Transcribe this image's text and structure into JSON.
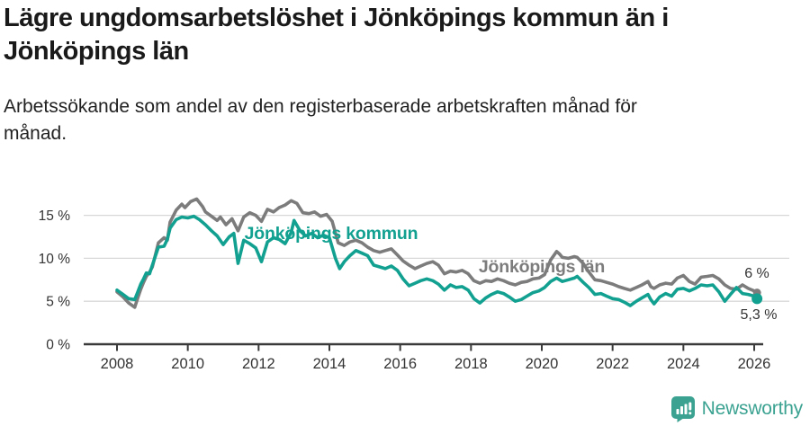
{
  "header": {
    "title_line1": "Lägre ungdomsarbetslöshet i Jönköpings kommun än i",
    "title_line2": "Jönköpings län",
    "subtitle_line1": "Arbetssökande som andel av den registerbaserade arbetskraften månad för",
    "subtitle_line2": "månad."
  },
  "footer": {
    "brand": "Newsworthy",
    "brand_color": "#3BA291",
    "logo_icon": "bar-chart-speech-bubble-icon"
  },
  "chart_data": {
    "type": "line",
    "title": "Lägre ungdomsarbetslöshet i Jönköpings kommun än i Jönköpings län",
    "subtitle": "Arbetssökande som andel av den registerbaserade arbetskraften månad för månad.",
    "grid": "horizontal",
    "legend": "inline-labels",
    "colors": {
      "kommun": "#12A191",
      "lan": "#7C7C7C",
      "gridline": "#D8D8D8",
      "axis": "#3A3A3A",
      "tick_text": "#333333"
    },
    "x_axis": {
      "ticks": [
        2008,
        2010,
        2012,
        2014,
        2016,
        2018,
        2020,
        2022,
        2024,
        2026
      ],
      "range": [
        2007.6,
        2027.0
      ]
    },
    "y_axis": {
      "tick_values": [
        0,
        5,
        10,
        15
      ],
      "tick_labels": [
        "0 %",
        "5 %",
        "10 %",
        "15 %"
      ],
      "unit": "%",
      "range": [
        0,
        17.5
      ]
    },
    "series": [
      {
        "name": "Jönköpings län",
        "color": "#7C7C7C",
        "end_label": "6 %",
        "end_value": 6.0,
        "points": [
          [
            2008.0,
            6.1
          ],
          [
            2008.17,
            5.5
          ],
          [
            2008.33,
            4.8
          ],
          [
            2008.5,
            4.3
          ],
          [
            2008.58,
            5.3
          ],
          [
            2008.67,
            6.4
          ],
          [
            2008.75,
            7.2
          ],
          [
            2008.83,
            7.9
          ],
          [
            2008.92,
            8.4
          ],
          [
            2009.0,
            9.0
          ],
          [
            2009.17,
            11.8
          ],
          [
            2009.33,
            12.4
          ],
          [
            2009.42,
            12.1
          ],
          [
            2009.5,
            14.2
          ],
          [
            2009.67,
            15.6
          ],
          [
            2009.83,
            16.3
          ],
          [
            2009.92,
            15.9
          ],
          [
            2010.08,
            16.6
          ],
          [
            2010.25,
            16.9
          ],
          [
            2010.42,
            16.0
          ],
          [
            2010.5,
            15.4
          ],
          [
            2010.67,
            14.9
          ],
          [
            2010.83,
            14.4
          ],
          [
            2010.92,
            14.8
          ],
          [
            2011.08,
            13.9
          ],
          [
            2011.25,
            14.6
          ],
          [
            2011.42,
            13.2
          ],
          [
            2011.58,
            14.8
          ],
          [
            2011.75,
            15.3
          ],
          [
            2011.92,
            15.0
          ],
          [
            2012.08,
            14.3
          ],
          [
            2012.25,
            15.7
          ],
          [
            2012.42,
            15.4
          ],
          [
            2012.58,
            15.9
          ],
          [
            2012.75,
            16.2
          ],
          [
            2012.92,
            16.7
          ],
          [
            2013.08,
            16.4
          ],
          [
            2013.25,
            15.3
          ],
          [
            2013.42,
            15.2
          ],
          [
            2013.58,
            15.4
          ],
          [
            2013.75,
            14.9
          ],
          [
            2013.92,
            15.1
          ],
          [
            2014.08,
            14.3
          ],
          [
            2014.25,
            11.8
          ],
          [
            2014.42,
            11.5
          ],
          [
            2014.58,
            11.9
          ],
          [
            2014.75,
            12.1
          ],
          [
            2014.92,
            11.8
          ],
          [
            2015.08,
            11.3
          ],
          [
            2015.25,
            10.9
          ],
          [
            2015.42,
            10.7
          ],
          [
            2015.58,
            10.9
          ],
          [
            2015.75,
            11.1
          ],
          [
            2015.92,
            10.4
          ],
          [
            2016.08,
            9.7
          ],
          [
            2016.25,
            9.2
          ],
          [
            2016.42,
            8.8
          ],
          [
            2016.58,
            9.1
          ],
          [
            2016.75,
            9.4
          ],
          [
            2016.92,
            9.6
          ],
          [
            2017.08,
            9.2
          ],
          [
            2017.25,
            8.2
          ],
          [
            2017.42,
            8.5
          ],
          [
            2017.58,
            8.4
          ],
          [
            2017.75,
            8.6
          ],
          [
            2017.92,
            8.2
          ],
          [
            2018.08,
            7.4
          ],
          [
            2018.25,
            7.1
          ],
          [
            2018.42,
            7.4
          ],
          [
            2018.58,
            7.3
          ],
          [
            2018.75,
            7.6
          ],
          [
            2018.92,
            7.4
          ],
          [
            2019.08,
            7.1
          ],
          [
            2019.25,
            6.9
          ],
          [
            2019.42,
            7.2
          ],
          [
            2019.58,
            7.3
          ],
          [
            2019.75,
            7.6
          ],
          [
            2019.92,
            7.7
          ],
          [
            2020.08,
            8.1
          ],
          [
            2020.25,
            9.8
          ],
          [
            2020.42,
            10.8
          ],
          [
            2020.5,
            10.5
          ],
          [
            2020.58,
            10.1
          ],
          [
            2020.75,
            10.0
          ],
          [
            2020.92,
            10.2
          ],
          [
            2021.0,
            10.1
          ],
          [
            2021.17,
            9.4
          ],
          [
            2021.33,
            8.4
          ],
          [
            2021.5,
            7.5
          ],
          [
            2021.67,
            7.4
          ],
          [
            2021.83,
            7.2
          ],
          [
            2022.0,
            7.0
          ],
          [
            2022.17,
            6.7
          ],
          [
            2022.33,
            6.5
          ],
          [
            2022.5,
            6.3
          ],
          [
            2022.67,
            6.6
          ],
          [
            2022.83,
            6.9
          ],
          [
            2023.0,
            7.3
          ],
          [
            2023.08,
            6.7
          ],
          [
            2023.17,
            6.5
          ],
          [
            2023.33,
            6.9
          ],
          [
            2023.5,
            7.1
          ],
          [
            2023.67,
            7.0
          ],
          [
            2023.83,
            7.7
          ],
          [
            2024.0,
            8.0
          ],
          [
            2024.17,
            7.3
          ],
          [
            2024.33,
            7.0
          ],
          [
            2024.5,
            7.8
          ],
          [
            2024.67,
            7.9
          ],
          [
            2024.83,
            8.0
          ],
          [
            2025.0,
            7.6
          ],
          [
            2025.17,
            6.9
          ],
          [
            2025.33,
            6.5
          ],
          [
            2025.5,
            6.4
          ],
          [
            2025.67,
            6.9
          ],
          [
            2025.83,
            6.5
          ],
          [
            2026.0,
            6.2
          ],
          [
            2026.08,
            6.0
          ]
        ]
      },
      {
        "name": "Jönköpings kommun",
        "color": "#12A191",
        "end_label": "5,3 %",
        "end_value": 5.3,
        "points": [
          [
            2008.0,
            6.3
          ],
          [
            2008.17,
            5.8
          ],
          [
            2008.33,
            5.3
          ],
          [
            2008.5,
            5.2
          ],
          [
            2008.58,
            6.0
          ],
          [
            2008.67,
            7.0
          ],
          [
            2008.75,
            7.6
          ],
          [
            2008.83,
            8.3
          ],
          [
            2008.92,
            8.2
          ],
          [
            2009.0,
            9.2
          ],
          [
            2009.17,
            11.3
          ],
          [
            2009.33,
            11.4
          ],
          [
            2009.42,
            12.2
          ],
          [
            2009.5,
            13.5
          ],
          [
            2009.67,
            14.5
          ],
          [
            2009.83,
            14.8
          ],
          [
            2010.0,
            14.7
          ],
          [
            2010.17,
            14.9
          ],
          [
            2010.33,
            14.5
          ],
          [
            2010.5,
            13.9
          ],
          [
            2010.67,
            13.2
          ],
          [
            2010.83,
            12.6
          ],
          [
            2011.0,
            11.6
          ],
          [
            2011.17,
            12.5
          ],
          [
            2011.3,
            12.9
          ],
          [
            2011.42,
            9.4
          ],
          [
            2011.58,
            12.1
          ],
          [
            2011.75,
            11.7
          ],
          [
            2011.92,
            11.2
          ],
          [
            2012.08,
            9.6
          ],
          [
            2012.25,
            11.9
          ],
          [
            2012.42,
            12.4
          ],
          [
            2012.58,
            12.2
          ],
          [
            2012.75,
            11.7
          ],
          [
            2012.92,
            13.0
          ],
          [
            2013.0,
            14.4
          ],
          [
            2013.17,
            13.2
          ],
          [
            2013.33,
            12.6
          ],
          [
            2013.5,
            12.9
          ],
          [
            2013.67,
            12.4
          ],
          [
            2013.83,
            12.7
          ],
          [
            2014.0,
            12.4
          ],
          [
            2014.17,
            10.0
          ],
          [
            2014.29,
            8.8
          ],
          [
            2014.42,
            9.6
          ],
          [
            2014.58,
            10.3
          ],
          [
            2014.75,
            10.9
          ],
          [
            2014.92,
            10.6
          ],
          [
            2015.08,
            10.3
          ],
          [
            2015.25,
            9.2
          ],
          [
            2015.42,
            9.0
          ],
          [
            2015.58,
            8.8
          ],
          [
            2015.75,
            9.1
          ],
          [
            2015.92,
            8.6
          ],
          [
            2016.08,
            7.6
          ],
          [
            2016.25,
            6.8
          ],
          [
            2016.42,
            7.1
          ],
          [
            2016.58,
            7.4
          ],
          [
            2016.75,
            7.6
          ],
          [
            2016.92,
            7.4
          ],
          [
            2017.08,
            7.0
          ],
          [
            2017.25,
            6.3
          ],
          [
            2017.42,
            6.9
          ],
          [
            2017.58,
            6.6
          ],
          [
            2017.75,
            6.7
          ],
          [
            2017.92,
            6.3
          ],
          [
            2018.08,
            5.3
          ],
          [
            2018.25,
            4.8
          ],
          [
            2018.42,
            5.4
          ],
          [
            2018.58,
            5.8
          ],
          [
            2018.75,
            6.1
          ],
          [
            2018.92,
            5.9
          ],
          [
            2019.08,
            5.5
          ],
          [
            2019.25,
            5.0
          ],
          [
            2019.42,
            5.2
          ],
          [
            2019.58,
            5.6
          ],
          [
            2019.75,
            6.0
          ],
          [
            2019.92,
            6.2
          ],
          [
            2020.08,
            6.6
          ],
          [
            2020.25,
            7.3
          ],
          [
            2020.42,
            7.7
          ],
          [
            2020.58,
            7.3
          ],
          [
            2020.75,
            7.5
          ],
          [
            2020.92,
            7.7
          ],
          [
            2021.0,
            7.9
          ],
          [
            2021.17,
            7.2
          ],
          [
            2021.33,
            6.6
          ],
          [
            2021.5,
            5.8
          ],
          [
            2021.67,
            5.9
          ],
          [
            2021.83,
            5.6
          ],
          [
            2022.0,
            5.3
          ],
          [
            2022.17,
            5.2
          ],
          [
            2022.33,
            4.9
          ],
          [
            2022.5,
            4.5
          ],
          [
            2022.67,
            5.0
          ],
          [
            2022.83,
            5.4
          ],
          [
            2023.0,
            5.8
          ],
          [
            2023.08,
            5.2
          ],
          [
            2023.17,
            4.7
          ],
          [
            2023.33,
            5.5
          ],
          [
            2023.5,
            5.9
          ],
          [
            2023.67,
            5.6
          ],
          [
            2023.83,
            6.4
          ],
          [
            2024.0,
            6.5
          ],
          [
            2024.17,
            6.2
          ],
          [
            2024.33,
            6.5
          ],
          [
            2024.5,
            6.9
          ],
          [
            2024.67,
            6.8
          ],
          [
            2024.83,
            6.9
          ],
          [
            2025.0,
            6.1
          ],
          [
            2025.17,
            5.0
          ],
          [
            2025.33,
            5.8
          ],
          [
            2025.5,
            6.6
          ],
          [
            2025.67,
            5.9
          ],
          [
            2025.83,
            5.8
          ],
          [
            2026.0,
            5.6
          ],
          [
            2026.08,
            5.3
          ]
        ]
      }
    ]
  }
}
